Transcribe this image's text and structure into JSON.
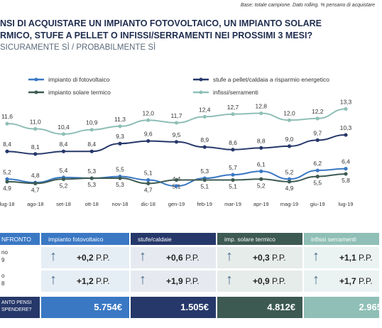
{
  "header": {
    "note": "Base: totale campione.  Dato rolling. % pensano di acquistare",
    "title_line1": "NSI DI ACQUISTARE UN IMPIANTO FOTOVOLTAICO, UN IMPIANTO SOLARE",
    "title_line2": "RMICO,  STUFE A PELLET O INFISSI/SERRAMENTI NEI PROSSIMI 3 MESI?",
    "subtitle": "SICURAMENTE SÌ / PROBABILMENTE SÌ"
  },
  "chart_data": {
    "type": "line",
    "categories": [
      "lug-18",
      "ago-18",
      "set-18",
      "ott-18",
      "nov-18",
      "dic-18",
      "gen-19",
      "feb-19",
      "mar-19",
      "apr-19",
      "mag-19",
      "giu-19",
      "lug-19"
    ],
    "series": [
      {
        "name": "impianto di fotovoltaico",
        "color": "#3a78c4",
        "values": [
          5.2,
          4.8,
          5.4,
          5.3,
          5.5,
          5.1,
          4.4,
          5.3,
          5.7,
          6.1,
          5.2,
          6.2,
          6.4
        ]
      },
      {
        "name": "stufe a pellet/caldaia a risparmio energetico",
        "color": "#26386a",
        "values": [
          8.4,
          8.1,
          8.4,
          8.4,
          9.3,
          9.6,
          9.5,
          8.9,
          8.6,
          8.8,
          9.0,
          9.7,
          10.3
        ]
      },
      {
        "name": "impianto solare termico",
        "color": "#3d5a52",
        "values": [
          4.9,
          4.7,
          5.2,
          5.3,
          5.3,
          4.7,
          5.1,
          5.1,
          5.1,
          5.2,
          4.9,
          5.5,
          5.8
        ]
      },
      {
        "name": "infissi/serramenti",
        "color": "#8fbfb6",
        "values": [
          11.6,
          11.0,
          10.4,
          10.9,
          11.3,
          12.0,
          11.7,
          12.4,
          12.7,
          12.8,
          12.0,
          12.2,
          13.3
        ]
      }
    ],
    "labels": [
      [
        "5,2",
        "4,8",
        "5,4",
        "5,3",
        "5,5",
        "5,1",
        "4,4",
        "5,3",
        "5,7",
        "6,1",
        "5,2",
        "6,2",
        "6,4"
      ],
      [
        "8,4",
        "8,1",
        "8,4",
        "8,4",
        "9,3",
        "9,6",
        "9,5",
        "8,9",
        "8,6",
        "8,8",
        "9,0",
        "9,7",
        "10,3"
      ],
      [
        "4,9",
        "4,7",
        "5,2",
        "5,3",
        "5,3",
        "4,7",
        "5,1",
        "5,1",
        "5,1",
        "5,2",
        "4,9",
        "5,5",
        "5,8"
      ],
      [
        "11,6",
        "11,0",
        "10,4",
        "10,9",
        "11,3",
        "12,0",
        "11,7",
        "12,4",
        "12,7",
        "12,8",
        "12,0",
        "12,2",
        "13,3"
      ]
    ],
    "title": "",
    "xlabel": "",
    "ylabel": ""
  },
  "table": {
    "corner_label": "NFRONTO",
    "row1_label_a": "no",
    "row1_label_b": "9",
    "row2_label_a": "o",
    "row2_label_b": "8",
    "cols": [
      {
        "header": "impianto fotovoltaico",
        "color": "#3a78c4",
        "row1": "+0,2",
        "row2": "+1,2",
        "spend": "5.754€"
      },
      {
        "header": "stufe/caldaie",
        "color": "#26386a",
        "row1": "+0,6",
        "row2": "+1,9",
        "spend": "1.505€"
      },
      {
        "header": "imp. solare termico",
        "color": "#3d5a52",
        "row1": "+0,3",
        "row2": "+0,9",
        "spend": "4.812€"
      },
      {
        "header": "infissi serramenti",
        "color": "#8fbfb6",
        "row1": "+1,1",
        "row2": "+1,7",
        "spend": "2.965"
      }
    ],
    "unit": "P.P.",
    "arrow": "↑",
    "spend_label_1": "ANTO PENSI",
    "spend_label_2": "SPENDERE?"
  }
}
